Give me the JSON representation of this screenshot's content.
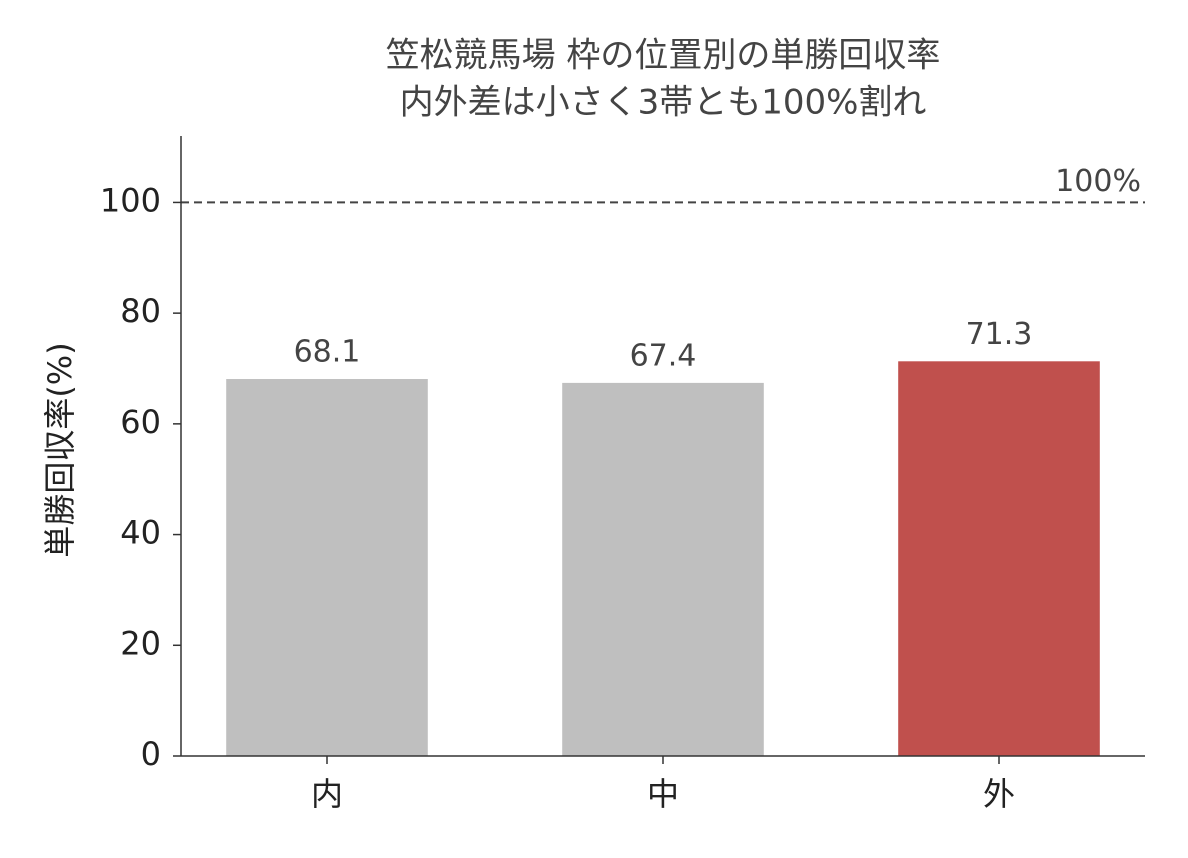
{
  "chart_data": {
    "type": "bar",
    "title": "笠松競馬場 枠の位置別の単勝回収率",
    "subtitle": "内外差は小さく3帯とも100%割れ",
    "y_label": "単勝回収率(%)",
    "categories": [
      "内",
      "中",
      "外"
    ],
    "values": [
      68.1,
      67.4,
      71.3
    ],
    "colors": [
      "#bfbfbf",
      "#bfbfbf",
      "#c0504d"
    ],
    "ylim": [
      0,
      112
    ],
    "yticks": [
      0,
      20,
      40,
      60,
      80,
      100
    ],
    "reference_line": {
      "value": 100,
      "label": "100%"
    },
    "grid": false
  }
}
